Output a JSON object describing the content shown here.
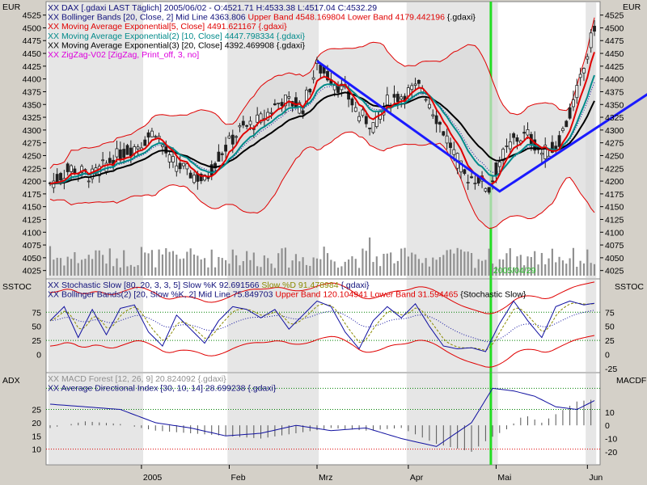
{
  "colors": {
    "background": "#d4d0c8",
    "plot_bg": "#ffffff",
    "stripe": "#e6e6e6",
    "bollinger_fill": "#d9d9d9",
    "bollinger_band": "#e00000",
    "bollinger_mid": "#1010a0",
    "ema5": "#e00000",
    "ema10": "#008a8a",
    "ema20": "#000000",
    "zigzag": "#1a1aff",
    "candle_up": "#ffffff",
    "candle_down": "#202020",
    "volume": "#909090",
    "marker": "#22dd22",
    "stoch_k": "#1010a0",
    "stoch_d": "#8a8a00",
    "adx": "#1010a0",
    "macd_hist": "#555555",
    "dotted_ref": "#008000"
  },
  "chart_data": [
    {
      "type": "candlestick",
      "panel": "price",
      "axis_label_left": "EUR",
      "axis_label_right": "EUR",
      "ylim": [
        4015,
        4545
      ],
      "yticks": [
        4025,
        4050,
        4075,
        4100,
        4125,
        4150,
        4175,
        4200,
        4225,
        4250,
        4275,
        4300,
        4325,
        4350,
        4375,
        4400,
        4425,
        4450,
        4475,
        4500,
        4525
      ],
      "legend": [
        {
          "marker": "XX",
          "text": "DAX [.gdaxi LAST Täglich] 2005/06/02 - O:4521.71 H:4533.38 L:4517.04 C:4532.29",
          "color": "#10107a"
        },
        {
          "marker": "XX",
          "text": "Bollinger Bands [20, Close, 2] Mid Line 4363.806 ",
          "color": "#10107a",
          "extra": [
            {
              "text": "Upper Band 4548.169804 Lower Band 4179.442196 ",
              "color": "#e00000"
            },
            {
              "text": "{.gdaxi}",
              "color": "#000000"
            }
          ]
        },
        {
          "marker": "XX",
          "text": "Moving Average Exponential[5, Close] 4491.621167 {.gdaxi}",
          "color": "#e00000"
        },
        {
          "marker": "XX",
          "text": "Moving Average Exponential(2) [10, Close] 4447.798334 {.gdaxi}",
          "color": "#008a8a"
        },
        {
          "marker": "XX",
          "text": "Moving Average Exponential(3) [20, Close] 4392.469908 {.gdaxi}",
          "color": "#000000"
        },
        {
          "marker": "XX",
          "text": "ZigZag-V02 [ZigZag, Print_off, 3, no]",
          "color": "#dd00dd"
        }
      ],
      "marker_date_label": "2005/04/29",
      "zigzag_points": [
        [
          76,
          4435
        ],
        [
          128,
          4180
        ],
        [
          200,
          4505
        ]
      ],
      "volume_scale_max": 4105
    },
    {
      "type": "line",
      "panel": "stochastic",
      "axis_label_left": "SSTOC",
      "axis_label_right": "SSTOC",
      "ylim": [
        -28,
        130
      ],
      "yticks_left": [
        0,
        25,
        50,
        75
      ],
      "yticks_right": [
        -25,
        0,
        25,
        50,
        75
      ],
      "reference_lines": [
        25,
        75
      ],
      "legend": [
        {
          "marker": "XX",
          "text": "Stochastic Slow [80, 20, 3, 3, 5] Slow %K 92.691566 ",
          "color": "#10107a",
          "extra": [
            {
              "text": "Slow %D 91.478984 ",
              "color": "#8a8a00"
            },
            {
              "text": "{.gdaxi}",
              "color": "#10107a"
            }
          ]
        },
        {
          "marker": "XX",
          "text": "Bollinger Bands(2) [20, Slow %K, 2] Mid Line 75.849703 ",
          "color": "#10107a",
          "extra": [
            {
              "text": "Upper Band 120.104941 Lower Band 31.594465 ",
              "color": "#e00000"
            },
            {
              "text": "{Stochastic Slow}",
              "color": "#000000"
            }
          ]
        }
      ]
    },
    {
      "type": "line",
      "panel": "adx_macd",
      "axis_label_left": "ADX",
      "axis_label_right": "MACDF",
      "ylim_adx": [
        5,
        38
      ],
      "yticks_left": [
        10,
        15,
        20,
        25
      ],
      "ylim_macd": [
        -28,
        38
      ],
      "yticks_right": [
        -20,
        -10,
        0,
        10
      ],
      "legend": [
        {
          "marker": "XX",
          "text": "MACD Forest [12, 26, 9] 20.824092 {.gdaxi}",
          "color": "#909090"
        },
        {
          "marker": "XX",
          "text": "Average Directional Index [30, 10, 14] 28.699238 {.gdaxi}",
          "color": "#10107a"
        }
      ]
    }
  ],
  "x_axis": {
    "labels": [
      {
        "text": "2005",
        "bar": 26
      },
      {
        "text": "Feb",
        "bar": 51
      },
      {
        "text": "Mrz",
        "bar": 76
      },
      {
        "text": "Apr",
        "bar": 102
      },
      {
        "text": "Mai",
        "bar": 127
      },
      {
        "text": "Jun",
        "bar": 153
      }
    ],
    "marker_bar": 125.5,
    "bar_count": 156
  }
}
